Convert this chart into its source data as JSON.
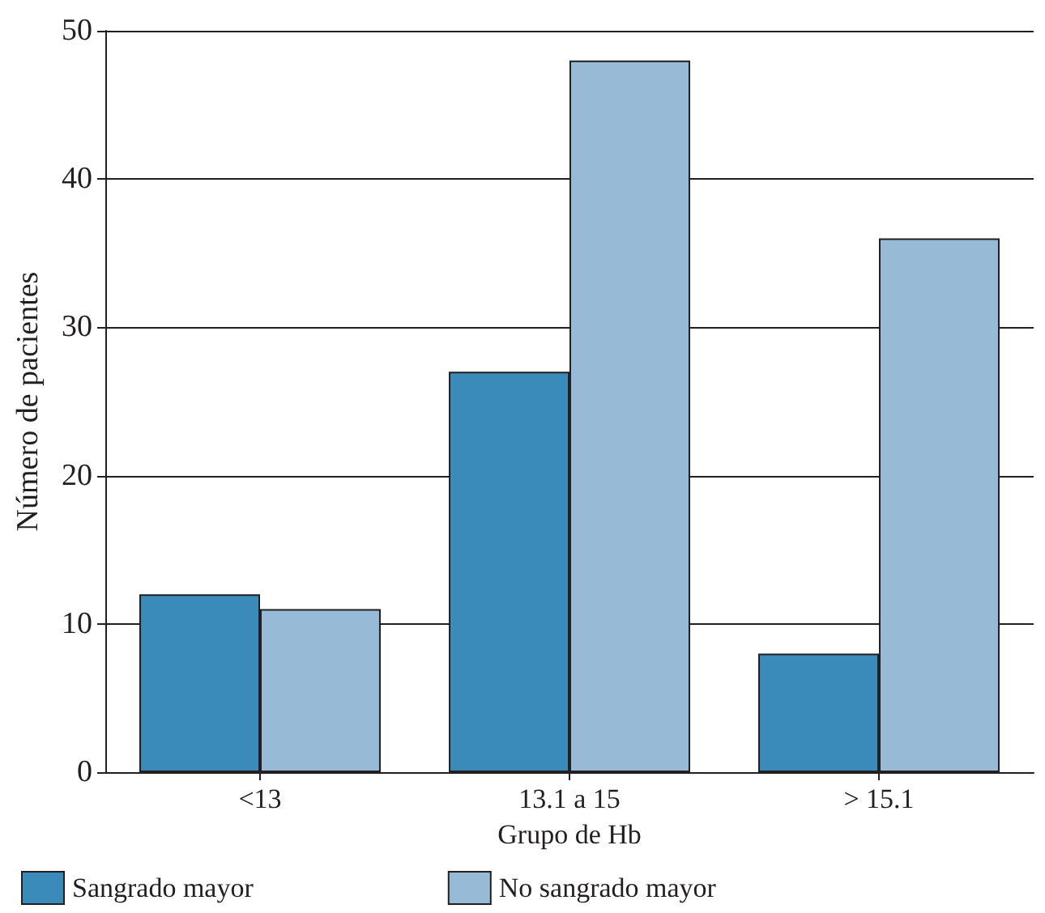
{
  "chart_data": {
    "type": "bar",
    "xlabel": "Grupo de Hb",
    "ylabel": "Número de pacientes",
    "categories": [
      "<13",
      "13.1 a 15",
      "> 15.1"
    ],
    "series": [
      {
        "name": "Sangrado mayor",
        "color": "#3a8aba",
        "values": [
          12,
          27,
          8
        ]
      },
      {
        "name": "No sangrado mayor",
        "color": "#97bad6",
        "values": [
          11,
          48,
          36
        ]
      }
    ],
    "ylim": [
      0,
      50
    ],
    "yticks": [
      0,
      10,
      20,
      30,
      40,
      50
    ],
    "grid": "y",
    "legend": "bottom"
  }
}
